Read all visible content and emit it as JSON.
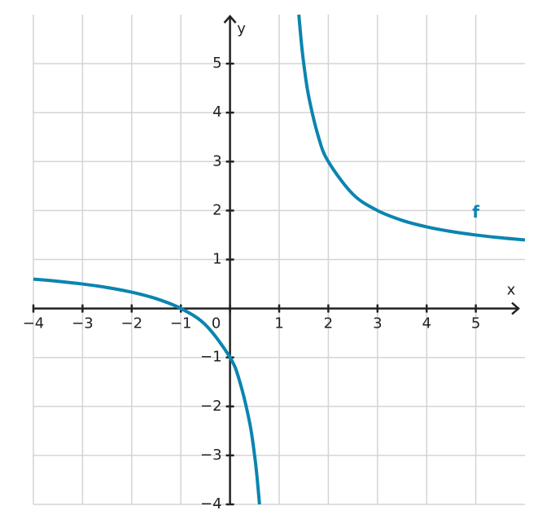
{
  "chart_data": {
    "type": "line",
    "x": [
      -4,
      -3.5,
      -3,
      -2.5,
      -2,
      -1.5,
      -1,
      -0.5,
      0,
      0.2,
      0.4,
      0.5,
      0.55,
      0.6,
      1,
      1.4,
      1.45,
      1.5,
      1.6,
      1.8,
      2,
      2.5,
      3,
      3.5,
      4,
      4.5,
      5,
      5.5,
      6
    ],
    "series": [
      {
        "name": "f",
        "color": "#0a85b0",
        "values": [
          0.6,
          0.5556,
          0.5,
          0.4286,
          0.3333,
          0.2,
          0,
          -0.3333,
          -1,
          -1.5,
          -2.3333,
          -3,
          -3.4444,
          -4,
          null,
          6,
          5.4444,
          5,
          4.3333,
          3.5,
          3,
          2.3333,
          2,
          1.8,
          1.6667,
          1.5714,
          1.5,
          1.4444,
          1.4
        ]
      }
    ],
    "x_label": "x",
    "y_label": "y",
    "xlim": [
      -4,
      6
    ],
    "ylim": [
      -4,
      6
    ],
    "xticks": [
      {
        "value": -4,
        "label": "−4"
      },
      {
        "value": -3,
        "label": "−3"
      },
      {
        "value": -2,
        "label": "−2"
      },
      {
        "value": -1,
        "label": "−1"
      },
      0,
      1,
      2,
      3,
      4,
      5
    ],
    "yticks": [
      {
        "value": -4,
        "label": "−4"
      },
      {
        "value": -3,
        "label": "−3"
      },
      {
        "value": -2,
        "label": "−2"
      },
      {
        "value": -1,
        "label": "−1"
      },
      1,
      2,
      3,
      4,
      5
    ],
    "grid": true
  }
}
